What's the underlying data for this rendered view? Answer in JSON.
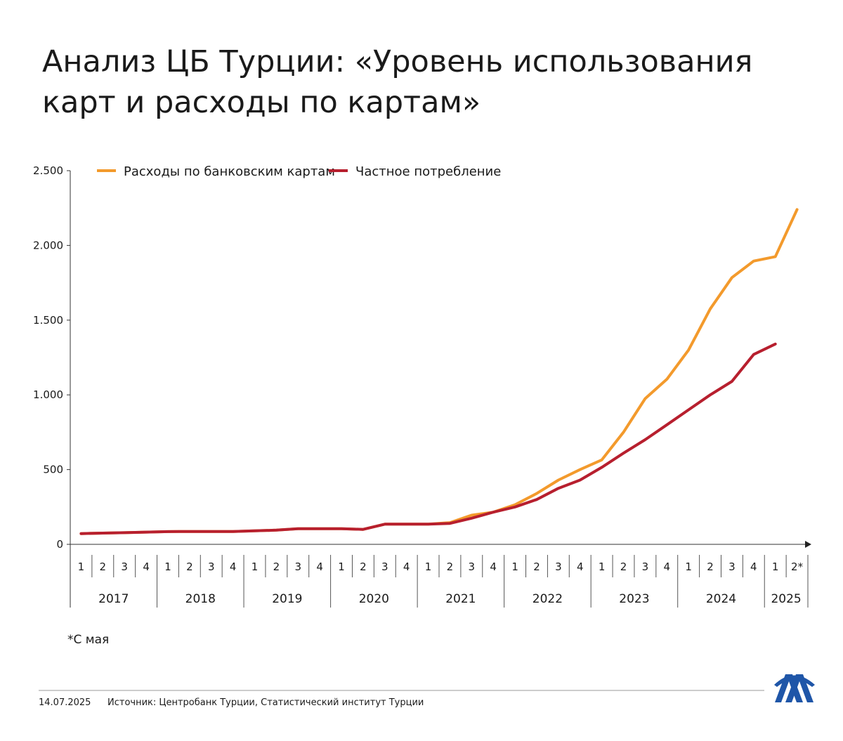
{
  "chart_data": {
    "type": "line",
    "title": "Анализ ЦБ Турции: «Уровень использования",
    "title_line2": "карт и расходы по картам»",
    "groups": [
      {
        "name": "2017",
        "categories": [
          "1",
          "2",
          "3",
          "4"
        ]
      },
      {
        "name": "2018",
        "categories": [
          "1",
          "2",
          "3",
          "4"
        ]
      },
      {
        "name": "2019",
        "categories": [
          "1",
          "2",
          "3",
          "4"
        ]
      },
      {
        "name": "2020",
        "categories": [
          "1",
          "2",
          "3",
          "4"
        ]
      },
      {
        "name": "2021",
        "categories": [
          "1",
          "2",
          "3",
          "4"
        ]
      },
      {
        "name": "2022",
        "categories": [
          "1",
          "2",
          "3",
          "4"
        ]
      },
      {
        "name": "2023",
        "categories": [
          "1",
          "2",
          "3",
          "4"
        ]
      },
      {
        "name": "2024",
        "categories": [
          "1",
          "2",
          "3",
          "4"
        ]
      },
      {
        "name": "2025",
        "categories": [
          "1",
          "2*"
        ]
      }
    ],
    "series": [
      {
        "name": "Расходы по банковским картам",
        "color": "#f39a2c",
        "values": [
          72,
          75,
          78,
          82,
          85,
          86,
          86,
          86,
          90,
          95,
          105,
          105,
          105,
          100,
          135,
          135,
          135,
          145,
          195,
          215,
          265,
          340,
          430,
          500,
          565,
          750,
          975,
          1105,
          1300,
          1575,
          1785,
          1895,
          1925,
          2240
        ]
      },
      {
        "name": "Частное потребление",
        "color": "#b71f2e",
        "values": [
          72,
          75,
          78,
          82,
          85,
          86,
          86,
          86,
          90,
          95,
          105,
          105,
          105,
          100,
          135,
          135,
          135,
          140,
          175,
          215,
          250,
          300,
          375,
          430,
          515,
          610,
          700,
          800,
          900,
          1000,
          1090,
          1270,
          1340,
          null
        ]
      }
    ],
    "ylim": [
      0,
      2500
    ],
    "yticks": [
      0,
      {
        "value": 500,
        "label": "500"
      },
      {
        "value": 1000,
        "label": "1.000"
      },
      {
        "value": 1500,
        "label": "1.500"
      },
      {
        "value": 2000,
        "label": "2.000"
      },
      {
        "value": 2500,
        "label": "2.500"
      }
    ],
    "footnote": "*С мая",
    "date": "14.07.2025",
    "source": "Источник: Центробанк Турции, Статистический институт Турции"
  }
}
